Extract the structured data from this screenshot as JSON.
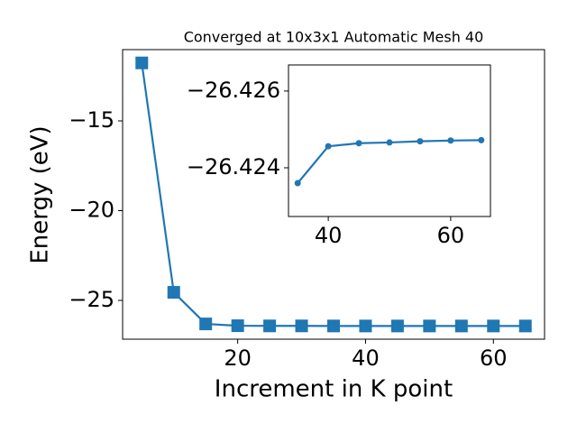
{
  "chart_data": [
    {
      "type": "line",
      "title": "Converged at 10x3x1 Automatic Mesh 40",
      "x_label": "Increment in K point",
      "y_label": "Energy (eV)",
      "x": [
        5,
        10,
        15,
        20,
        25,
        30,
        35,
        40,
        45,
        50,
        55,
        60,
        65
      ],
      "series": [
        {
          "color": "#1f77b4",
          "marker": "square",
          "values": [
            -11.77,
            -24.55,
            -26.31,
            -26.41,
            -26.42,
            -26.42,
            -26.4236,
            -26.42456,
            -26.42464,
            -26.42466,
            -26.42469,
            -26.42471,
            -26.42472
          ]
        }
      ],
      "xlim": [
        2,
        68
      ],
      "xticks": [
        20,
        40,
        60
      ],
      "ylim": [
        -27.16,
        -11.03
      ],
      "yticks": [
        {
          "value": -25,
          "label": "−25"
        },
        {
          "value": -20,
          "label": "−20"
        },
        {
          "value": -15,
          "label": "−15"
        }
      ]
    },
    {
      "type": "line",
      "x": [
        35,
        40,
        45,
        50,
        55,
        60,
        65
      ],
      "series": [
        {
          "color": "#1f77b4",
          "marker": "circle",
          "values": [
            -26.4236,
            -26.42456,
            -26.42464,
            -26.42466,
            -26.42469,
            -26.42471,
            -26.42472
          ]
        }
      ],
      "xlim": [
        33.5,
        66.5
      ],
      "xticks": [
        40,
        60
      ],
      "ylim": [
        -26.42273,
        -26.42668
      ],
      "yticks": [
        {
          "value": -26.424,
          "label": "−26.424"
        },
        {
          "value": -26.426,
          "label": "−26.426"
        }
      ]
    }
  ]
}
